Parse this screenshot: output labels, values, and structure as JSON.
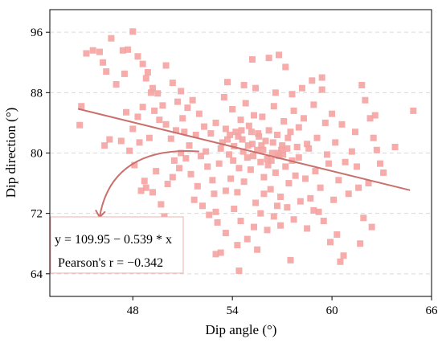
{
  "chart_data": {
    "type": "scatter",
    "xlabel": "Dip angle (°)",
    "ylabel": "Dip direction (°)",
    "xlim": [
      43,
      66
    ],
    "ylim": [
      61,
      99
    ],
    "xticks": [
      48,
      54,
      60,
      66
    ],
    "yticks": [
      64,
      72,
      80,
      88,
      96
    ],
    "grid": "horizontal dashed",
    "point_color": "#f4a3a1",
    "line_color": "#c9716c",
    "fit": {
      "slope": -0.539,
      "intercept": 109.95,
      "x_range": [
        44.7,
        64.7
      ]
    },
    "annotations": {
      "equation": "y = 109.95 − 0.539 * x",
      "pearson": "Pearson's r = −0.342"
    },
    "points": [
      [
        45.2,
        93.2
      ],
      [
        45.6,
        93.6
      ],
      [
        46.0,
        93.4
      ],
      [
        46.4,
        90.8
      ],
      [
        46.7,
        95.2
      ],
      [
        47.0,
        89.1
      ],
      [
        47.4,
        93.6
      ],
      [
        47.7,
        93.7
      ],
      [
        48.0,
        96.1
      ],
      [
        48.3,
        92.8
      ],
      [
        48.6,
        91.8
      ],
      [
        48.9,
        90.7
      ],
      [
        49.2,
        88.6
      ],
      [
        49.5,
        87.9
      ],
      [
        50.0,
        91.6
      ],
      [
        50.4,
        89.3
      ],
      [
        50.9,
        88.2
      ],
      [
        47.5,
        90.5
      ],
      [
        48.8,
        89.9
      ],
      [
        46.2,
        92.0
      ],
      [
        44.9,
        86.2
      ],
      [
        44.8,
        83.7
      ],
      [
        46.3,
        81.0
      ],
      [
        46.6,
        81.8
      ],
      [
        47.3,
        81.6
      ],
      [
        47.8,
        80.3
      ],
      [
        48.0,
        83.2
      ],
      [
        48.3,
        84.8
      ],
      [
        48.6,
        86.1
      ],
      [
        49.0,
        82.0
      ],
      [
        49.3,
        85.6
      ],
      [
        49.6,
        84.4
      ],
      [
        50.0,
        83.8
      ],
      [
        50.3,
        81.9
      ],
      [
        50.6,
        83.0
      ],
      [
        51.0,
        84.6
      ],
      [
        51.3,
        86.0
      ],
      [
        51.6,
        87.0
      ],
      [
        52.0,
        85.2
      ],
      [
        52.3,
        83.5
      ],
      [
        49.1,
        88.0
      ],
      [
        50.7,
        86.8
      ],
      [
        48.4,
        81.4
      ],
      [
        47.6,
        85.4
      ],
      [
        49.8,
        86.3
      ],
      [
        48.1,
        78.4
      ],
      [
        48.5,
        75.0
      ],
      [
        48.8,
        75.4
      ],
      [
        49.2,
        74.8
      ],
      [
        49.7,
        73.2
      ],
      [
        49.9,
        71.6
      ],
      [
        50.4,
        76.8
      ],
      [
        50.8,
        78.0
      ],
      [
        51.2,
        79.3
      ],
      [
        51.5,
        77.2
      ],
      [
        51.9,
        75.6
      ],
      [
        52.2,
        73.0
      ],
      [
        52.6,
        71.8
      ],
      [
        53.0,
        72.2
      ],
      [
        49.4,
        77.6
      ],
      [
        50.1,
        75.9
      ],
      [
        48.7,
        76.3
      ],
      [
        51.7,
        73.8
      ],
      [
        52.8,
        76.4
      ],
      [
        52.4,
        80.2
      ],
      [
        52.7,
        82.6
      ],
      [
        53.0,
        84.0
      ],
      [
        53.2,
        78.6
      ],
      [
        53.4,
        81.4
      ],
      [
        53.5,
        87.4
      ],
      [
        53.6,
        83.2
      ],
      [
        53.8,
        79.8
      ],
      [
        53.9,
        76.6
      ],
      [
        54.0,
        85.8
      ],
      [
        54.1,
        80.9
      ],
      [
        54.2,
        82.8
      ],
      [
        54.3,
        74.8
      ],
      [
        54.4,
        78.0
      ],
      [
        54.5,
        84.4
      ],
      [
        54.6,
        81.8
      ],
      [
        54.7,
        76.2
      ],
      [
        54.8,
        86.6
      ],
      [
        54.9,
        79.4
      ],
      [
        55.0,
        83.6
      ],
      [
        55.1,
        77.8
      ],
      [
        55.2,
        81.2
      ],
      [
        55.3,
        85.0
      ],
      [
        55.4,
        73.4
      ],
      [
        55.5,
        80.4
      ],
      [
        55.6,
        82.2
      ],
      [
        55.7,
        78.8
      ],
      [
        55.8,
        84.8
      ],
      [
        55.9,
        76.8
      ],
      [
        56.0,
        81.6
      ],
      [
        56.1,
        79.2
      ],
      [
        56.2,
        83.0
      ],
      [
        56.3,
        75.2
      ],
      [
        56.4,
        80.0
      ],
      [
        56.5,
        86.2
      ],
      [
        56.6,
        77.4
      ],
      [
        56.7,
        82.4
      ],
      [
        56.8,
        79.6
      ],
      [
        56.9,
        74.2
      ],
      [
        57.0,
        81.0
      ],
      [
        57.1,
        84.2
      ],
      [
        57.2,
        78.2
      ],
      [
        57.3,
        80.6
      ],
      [
        57.4,
        76.0
      ],
      [
        57.5,
        82.8
      ],
      [
        57.6,
        79.0
      ],
      [
        57.7,
        85.6
      ],
      [
        57.8,
        77.0
      ],
      [
        57.9,
        80.8
      ],
      [
        58.0,
        83.4
      ],
      [
        53.3,
        80.6
      ],
      [
        53.7,
        81.8
      ],
      [
        54.05,
        79.0
      ],
      [
        54.35,
        82.2
      ],
      [
        54.65,
        80.2
      ],
      [
        54.95,
        81.0
      ],
      [
        55.25,
        79.6
      ],
      [
        55.55,
        82.6
      ],
      [
        55.85,
        80.4
      ],
      [
        56.15,
        78.4
      ],
      [
        56.45,
        81.4
      ],
      [
        56.75,
        80.0
      ],
      [
        57.05,
        79.8
      ],
      [
        57.35,
        82.0
      ],
      [
        53.85,
        82.4
      ],
      [
        54.55,
        83.0
      ],
      [
        55.15,
        82.8
      ],
      [
        55.75,
        81.0
      ],
      [
        56.35,
        79.0
      ],
      [
        56.95,
        80.4
      ],
      [
        53.1,
        70.8
      ],
      [
        53.6,
        69.4
      ],
      [
        54.1,
        72.6
      ],
      [
        54.5,
        71.0
      ],
      [
        54.9,
        68.6
      ],
      [
        55.3,
        70.2
      ],
      [
        55.7,
        72.0
      ],
      [
        56.1,
        69.8
      ],
      [
        56.5,
        71.6
      ],
      [
        56.9,
        70.4
      ],
      [
        57.3,
        72.8
      ],
      [
        57.7,
        71.2
      ],
      [
        58.1,
        73.6
      ],
      [
        58.5,
        70.0
      ],
      [
        58.9,
        72.4
      ],
      [
        54.3,
        67.8
      ],
      [
        55.5,
        67.2
      ],
      [
        53.3,
        66.8
      ],
      [
        57.5,
        65.8
      ],
      [
        54.4,
        64.4
      ],
      [
        53.0,
        66.6
      ],
      [
        55.9,
        74.6
      ],
      [
        56.7,
        73.0
      ],
      [
        58.3,
        84.6
      ],
      [
        58.6,
        80.6
      ],
      [
        58.9,
        86.4
      ],
      [
        59.1,
        82.0
      ],
      [
        59.4,
        88.4
      ],
      [
        59.6,
        84.0
      ],
      [
        59.8,
        78.6
      ],
      [
        60.0,
        85.2
      ],
      [
        60.2,
        81.4
      ],
      [
        60.4,
        76.4
      ],
      [
        60.6,
        83.8
      ],
      [
        60.8,
        78.8
      ],
      [
        61.0,
        74.6
      ],
      [
        61.2,
        80.2
      ],
      [
        61.4,
        82.8
      ],
      [
        58.4,
        76.6
      ],
      [
        58.7,
        74.0
      ],
      [
        59.0,
        77.6
      ],
      [
        59.3,
        75.4
      ],
      [
        59.7,
        79.8
      ],
      [
        60.1,
        73.8
      ],
      [
        59.5,
        71.0
      ],
      [
        60.3,
        69.2
      ],
      [
        59.9,
        68.2
      ],
      [
        60.7,
        66.4
      ],
      [
        60.5,
        65.6
      ],
      [
        59.2,
        72.2
      ],
      [
        58.2,
        88.6
      ],
      [
        59.4,
        90.0
      ],
      [
        58.8,
        89.6
      ],
      [
        61.8,
        89.0
      ],
      [
        62.0,
        87.0
      ],
      [
        62.3,
        84.6
      ],
      [
        62.5,
        82.0
      ],
      [
        62.7,
        80.4
      ],
      [
        62.9,
        78.6
      ],
      [
        63.1,
        77.4
      ],
      [
        62.2,
        76.0
      ],
      [
        61.6,
        75.4
      ],
      [
        61.9,
        71.4
      ],
      [
        62.4,
        70.2
      ],
      [
        61.7,
        68.0
      ],
      [
        63.8,
        80.8
      ],
      [
        64.9,
        85.6
      ],
      [
        62.6,
        85.0
      ],
      [
        61.5,
        78.2
      ],
      [
        51.8,
        82.4
      ],
      [
        52.1,
        79.6
      ],
      [
        51.4,
        81.0
      ],
      [
        50.9,
        80.0
      ],
      [
        50.5,
        79.0
      ],
      [
        51.1,
        82.8
      ],
      [
        52.5,
        78.2
      ],
      [
        53.6,
        75.0
      ],
      [
        52.9,
        74.6
      ],
      [
        56.6,
        88.0
      ],
      [
        55.4,
        88.6
      ],
      [
        54.7,
        89.0
      ],
      [
        53.7,
        89.4
      ],
      [
        55.2,
        92.4
      ],
      [
        56.2,
        92.6
      ],
      [
        56.8,
        93.0
      ],
      [
        57.2,
        91.4
      ],
      [
        57.6,
        87.8
      ],
      [
        58.5,
        81.2
      ],
      [
        58.0,
        79.4
      ]
    ]
  }
}
